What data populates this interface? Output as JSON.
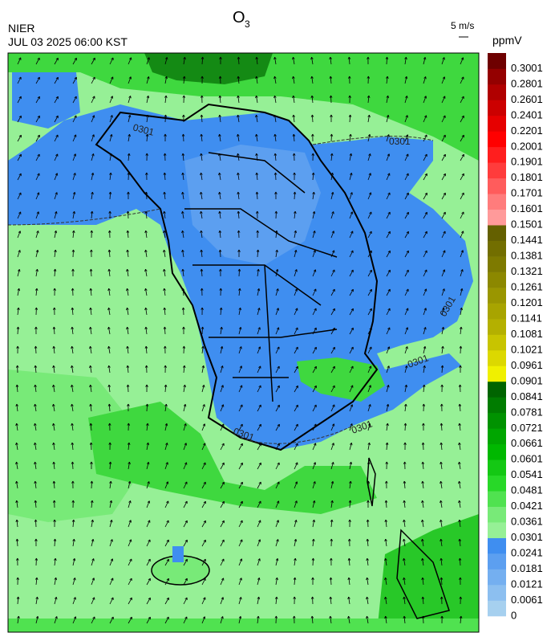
{
  "header": {
    "title": "O",
    "title_subscript": "3",
    "agency": "NIER",
    "time": "JUL 03 2025 06:00 KST"
  },
  "wind_reference": "5 m/s",
  "contour_label": "0301",
  "colorbar": {
    "unit": "ppmV",
    "levels": [
      0,
      0.0061,
      0.0121,
      0.0181,
      0.0241,
      0.0301,
      0.0361,
      0.0421,
      0.0481,
      0.0541,
      0.0601,
      0.0661,
      0.0721,
      0.0781,
      0.0841,
      0.0901,
      0.0961,
      0.1021,
      0.1081,
      0.1141,
      0.1201,
      0.1261,
      0.1321,
      0.1381,
      0.1441,
      0.1501,
      0.1601,
      0.1701,
      0.1801,
      0.1901,
      0.2001,
      0.2201,
      0.2401,
      0.2601,
      0.2801,
      0.3001
    ],
    "colors": [
      "#a6d0ef",
      "#8cbff0",
      "#74aff0",
      "#5c9ff0",
      "#3f8ef0",
      "#96f096",
      "#78ea78",
      "#50e250",
      "#28d828",
      "#14c814",
      "#00b800",
      "#00a600",
      "#009200",
      "#007c00",
      "#006400",
      "#f0f000",
      "#dcd800",
      "#c8c400",
      "#b4b000",
      "#a8a400",
      "#9a9600",
      "#8c8800",
      "#7e7a00",
      "#726e00",
      "#646000",
      "#ff9a9a",
      "#ff7c7c",
      "#ff5c5c",
      "#ff3c3c",
      "#ff1e1e",
      "#ff0000",
      "#e60000",
      "#cc0000",
      "#b00000",
      "#940000",
      "#6e0000"
    ]
  }
}
